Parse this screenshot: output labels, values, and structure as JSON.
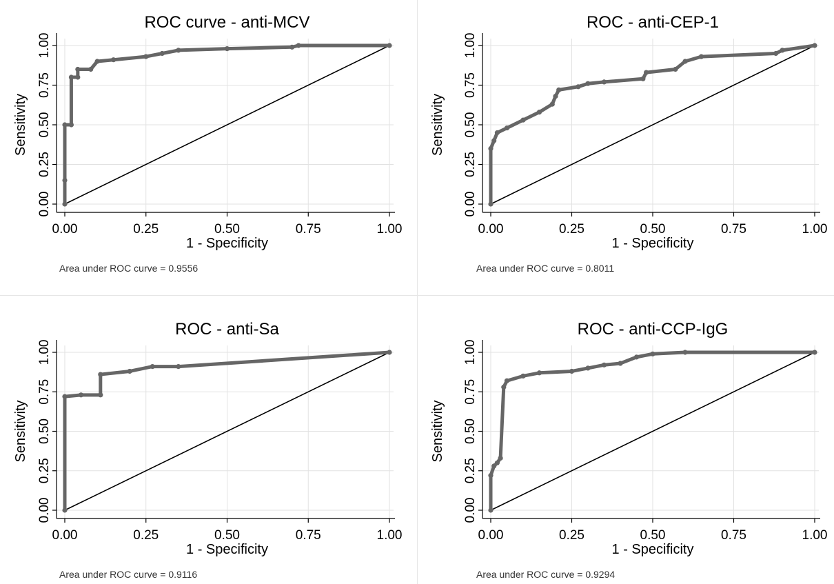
{
  "chart_data": [
    {
      "type": "line",
      "title": "ROC curve - anti-MCV",
      "xlabel": "1 - Specificity",
      "ylabel": "Sensitivity",
      "xlim": [
        0,
        1
      ],
      "ylim": [
        0,
        1
      ],
      "xticks": [
        "0.00",
        "0.25",
        "0.50",
        "0.75",
        "1.00"
      ],
      "yticks": [
        "0.00",
        "0.25",
        "0.50",
        "0.75",
        "1.00"
      ],
      "grid": true,
      "note": "Area under ROC curve = 0.9556",
      "series": [
        {
          "points": [
            [
              0,
              0
            ],
            [
              0,
              0.15
            ],
            [
              0,
              0.5
            ],
            [
              0.02,
              0.5
            ],
            [
              0.02,
              0.8
            ],
            [
              0.04,
              0.8
            ],
            [
              0.04,
              0.85
            ],
            [
              0.08,
              0.85
            ],
            [
              0.1,
              0.9
            ],
            [
              0.15,
              0.91
            ],
            [
              0.25,
              0.93
            ],
            [
              0.3,
              0.95
            ],
            [
              0.35,
              0.97
            ],
            [
              0.5,
              0.98
            ],
            [
              0.7,
              0.99
            ],
            [
              0.72,
              1
            ],
            [
              1,
              1
            ]
          ]
        },
        {
          "points": [
            [
              0,
              0
            ],
            [
              1,
              1
            ]
          ]
        }
      ]
    },
    {
      "type": "line",
      "title": "ROC - anti-CEP-1",
      "xlabel": "1 - Specificity",
      "ylabel": "Sensitivity",
      "xlim": [
        0,
        1
      ],
      "ylim": [
        0,
        1
      ],
      "xticks": [
        "0.00",
        "0.25",
        "0.50",
        "0.75",
        "1.00"
      ],
      "yticks": [
        "0.00",
        "0.25",
        "0.50",
        "0.75",
        "1.00"
      ],
      "grid": true,
      "note": "Area under ROC curve = 0.8011",
      "series": [
        {
          "points": [
            [
              0,
              0
            ],
            [
              0,
              0.35
            ],
            [
              0.01,
              0.4
            ],
            [
              0.02,
              0.45
            ],
            [
              0.05,
              0.48
            ],
            [
              0.1,
              0.53
            ],
            [
              0.15,
              0.58
            ],
            [
              0.19,
              0.63
            ],
            [
              0.2,
              0.68
            ],
            [
              0.21,
              0.72
            ],
            [
              0.27,
              0.74
            ],
            [
              0.3,
              0.76
            ],
            [
              0.35,
              0.77
            ],
            [
              0.47,
              0.79
            ],
            [
              0.48,
              0.83
            ],
            [
              0.57,
              0.85
            ],
            [
              0.6,
              0.9
            ],
            [
              0.65,
              0.93
            ],
            [
              0.88,
              0.95
            ],
            [
              0.9,
              0.97
            ],
            [
              1,
              1
            ]
          ]
        },
        {
          "points": [
            [
              0,
              0
            ],
            [
              1,
              1
            ]
          ]
        }
      ]
    },
    {
      "type": "line",
      "title": "ROC - anti-Sa",
      "xlabel": "1 - Specificity",
      "ylabel": "Sensitivity",
      "xlim": [
        0,
        1
      ],
      "ylim": [
        0,
        1
      ],
      "xticks": [
        "0.00",
        "0.25",
        "0.50",
        "0.75",
        "1.00"
      ],
      "yticks": [
        "0.00",
        "0.25",
        "0.50",
        "0.75",
        "1.00"
      ],
      "grid": true,
      "note": "Area under ROC curve = 0.9116",
      "series": [
        {
          "points": [
            [
              0,
              0
            ],
            [
              0,
              0.72
            ],
            [
              0.05,
              0.73
            ],
            [
              0.11,
              0.73
            ],
            [
              0.11,
              0.86
            ],
            [
              0.2,
              0.88
            ],
            [
              0.27,
              0.91
            ],
            [
              0.35,
              0.91
            ],
            [
              1,
              1
            ]
          ]
        },
        {
          "points": [
            [
              0,
              0
            ],
            [
              1,
              1
            ]
          ]
        }
      ]
    },
    {
      "type": "line",
      "title": "ROC - anti-CCP-IgG",
      "xlabel": "1 - Specificity",
      "ylabel": "Sensitivity",
      "xlim": [
        0,
        1
      ],
      "ylim": [
        0,
        1
      ],
      "xticks": [
        "0.00",
        "0.25",
        "0.50",
        "0.75",
        "1.00"
      ],
      "yticks": [
        "0.00",
        "0.25",
        "0.50",
        "0.75",
        "1.00"
      ],
      "grid": true,
      "note": "Area under ROC curve = 0.9294",
      "series": [
        {
          "points": [
            [
              0,
              0
            ],
            [
              0,
              0.22
            ],
            [
              0.01,
              0.28
            ],
            [
              0.02,
              0.3
            ],
            [
              0.03,
              0.33
            ],
            [
              0.04,
              0.78
            ],
            [
              0.05,
              0.82
            ],
            [
              0.1,
              0.85
            ],
            [
              0.15,
              0.87
            ],
            [
              0.25,
              0.88
            ],
            [
              0.3,
              0.9
            ],
            [
              0.35,
              0.92
            ],
            [
              0.4,
              0.93
            ],
            [
              0.45,
              0.97
            ],
            [
              0.5,
              0.99
            ],
            [
              0.6,
              1
            ],
            [
              1,
              1
            ]
          ]
        },
        {
          "points": [
            [
              0,
              0
            ],
            [
              1,
              1
            ]
          ]
        }
      ]
    }
  ],
  "colors": {
    "curve": "#666666",
    "reference": "#000000",
    "grid": "#e2e2e2",
    "text": "#000000"
  }
}
